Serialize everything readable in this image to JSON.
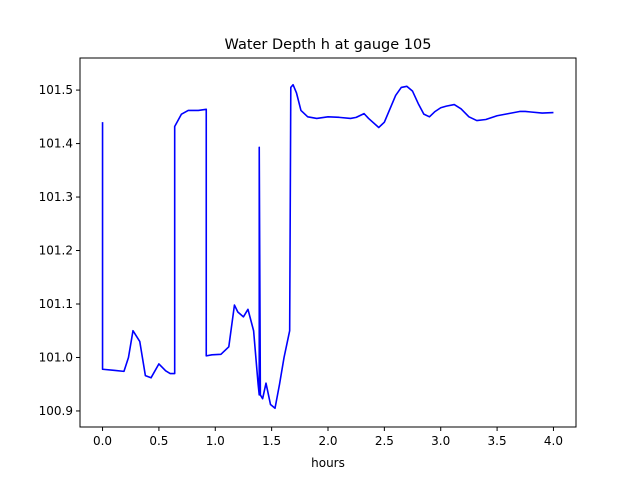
{
  "chart_data": {
    "type": "line",
    "title": "Water Depth h at gauge 105",
    "xlabel": "hours",
    "ylabel": "",
    "xlim": [
      -0.2,
      4.2
    ],
    "ylim": [
      100.87,
      101.56
    ],
    "xticks": [
      0.0,
      0.5,
      1.0,
      1.5,
      2.0,
      2.5,
      3.0,
      3.5,
      4.0
    ],
    "xtick_labels": [
      "0.0",
      "0.5",
      "1.0",
      "1.5",
      "2.0",
      "2.5",
      "3.0",
      "3.5",
      "4.0"
    ],
    "yticks": [
      100.9,
      101.0,
      101.1,
      101.2,
      101.3,
      101.4,
      101.5
    ],
    "ytick_labels": [
      "100.9",
      "101.0",
      "101.1",
      "101.2",
      "101.3",
      "101.4",
      "101.5"
    ],
    "grid": false,
    "legend": "none",
    "series": [
      {
        "color": "#0000ff",
        "x": [
          0.0,
          0.0,
          0.1,
          0.19,
          0.23,
          0.27,
          0.33,
          0.38,
          0.43,
          0.5,
          0.56,
          0.6,
          0.64,
          0.64,
          0.7,
          0.76,
          0.85,
          0.92,
          0.92,
          0.97,
          1.05,
          1.12,
          1.17,
          1.2,
          1.25,
          1.29,
          1.34,
          1.38,
          1.39,
          1.39,
          1.4,
          1.42,
          1.45,
          1.49,
          1.53,
          1.57,
          1.61,
          1.65,
          1.66,
          1.67,
          1.69,
          1.72,
          1.76,
          1.82,
          1.9,
          2.0,
          2.1,
          2.2,
          2.25,
          2.32,
          2.36,
          2.45,
          2.5,
          2.6,
          2.65,
          2.7,
          2.75,
          2.8,
          2.85,
          2.9,
          2.95,
          3.0,
          3.05,
          3.12,
          3.18,
          3.25,
          3.32,
          3.4,
          3.5,
          3.6,
          3.7,
          3.75,
          3.8,
          3.9,
          4.0
        ],
        "y": [
          101.44,
          100.978,
          100.976,
          100.974,
          101.0,
          101.05,
          101.03,
          100.966,
          100.962,
          100.988,
          100.975,
          100.97,
          100.97,
          101.432,
          101.455,
          101.462,
          101.462,
          101.464,
          101.003,
          101.005,
          101.006,
          101.02,
          101.098,
          101.085,
          101.076,
          101.09,
          101.05,
          100.95,
          100.93,
          101.393,
          100.93,
          100.923,
          100.952,
          100.912,
          100.905,
          100.95,
          101.0,
          101.04,
          101.05,
          101.505,
          101.51,
          101.495,
          101.462,
          101.45,
          101.447,
          101.45,
          101.449,
          101.447,
          101.449,
          101.456,
          101.447,
          101.43,
          101.44,
          101.49,
          101.505,
          101.507,
          101.498,
          101.475,
          101.455,
          101.45,
          101.46,
          101.467,
          101.47,
          101.473,
          101.465,
          101.45,
          101.443,
          101.445,
          101.452,
          101.456,
          101.46,
          101.46,
          101.459,
          101.457,
          101.458
        ]
      }
    ]
  }
}
